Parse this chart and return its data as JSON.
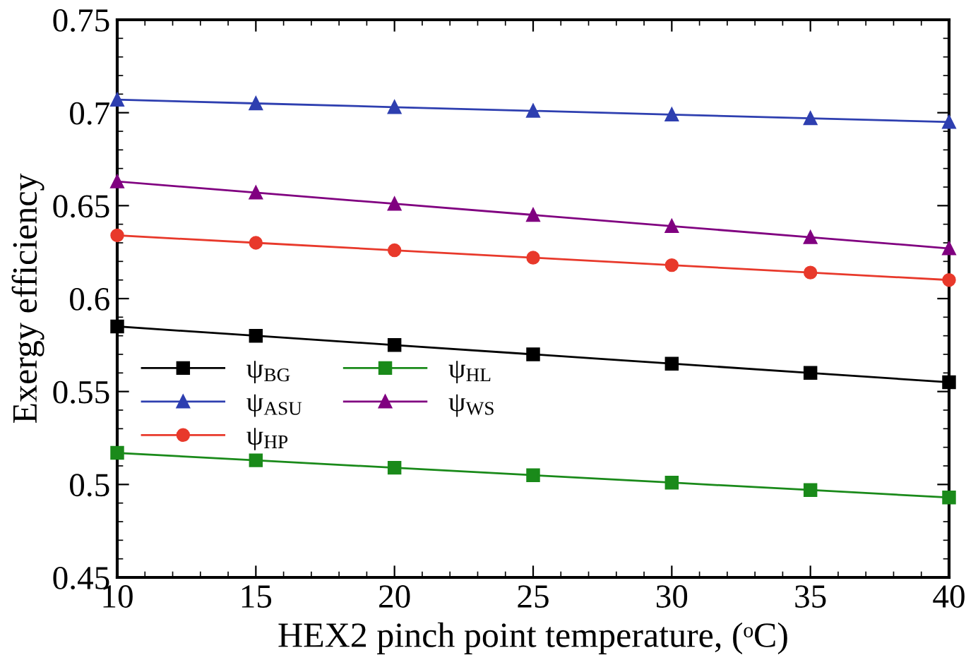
{
  "chart_data": {
    "type": "line",
    "xlabel": "HEX2 pinch point temperature, (ᵒC)",
    "ylabel": "Exergy efficiency",
    "x": [
      10,
      15,
      20,
      25,
      30,
      35,
      40
    ],
    "xlim": [
      10,
      40
    ],
    "xticks": [
      10,
      15,
      20,
      25,
      30,
      35,
      40
    ],
    "ylim": [
      0.45,
      0.75
    ],
    "yticks": [
      0.45,
      0.5,
      0.55,
      0.6,
      0.65,
      0.7,
      0.75
    ],
    "grid": false,
    "legend": "left",
    "line_style": "solid",
    "series": [
      {
        "name": "ψ$_{BG}$",
        "color": "#000000",
        "marker": "square",
        "values": [
          0.585,
          0.58,
          0.575,
          0.57,
          0.565,
          0.56,
          0.555
        ]
      },
      {
        "name": "ψ$_{ASU}$",
        "color": "#2e3fb0",
        "marker": "triangle",
        "values": [
          0.707,
          0.705,
          0.703,
          0.701,
          0.699,
          0.697,
          0.695
        ]
      },
      {
        "name": "ψ$_{HP}$",
        "color": "#e8392b",
        "marker": "circle",
        "values": [
          0.634,
          0.63,
          0.626,
          0.622,
          0.618,
          0.614,
          0.61
        ]
      },
      {
        "name": "ψ$_{HL}$",
        "color": "#1a8a1a",
        "marker": "square",
        "values": [
          0.517,
          0.513,
          0.509,
          0.505,
          0.501,
          0.497,
          0.493
        ]
      },
      {
        "name": "ψ$_{WS}$",
        "color": "#800080",
        "marker": "triangle",
        "values": [
          0.663,
          0.657,
          0.651,
          0.645,
          0.639,
          0.633,
          0.627
        ]
      }
    ]
  }
}
